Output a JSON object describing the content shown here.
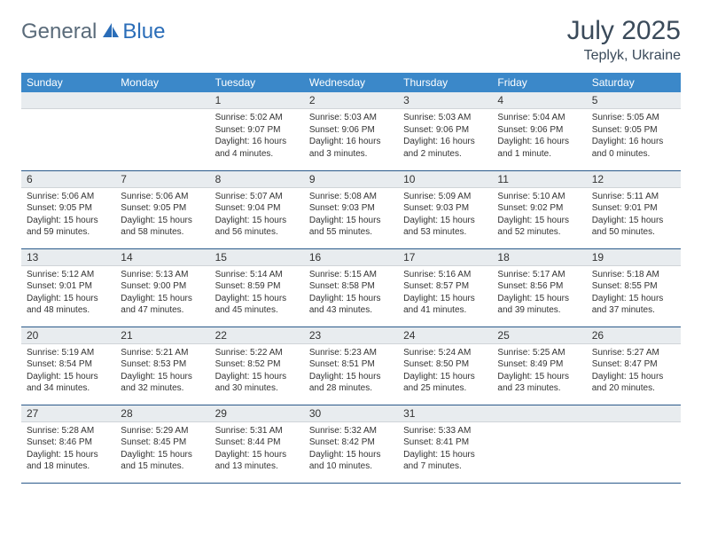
{
  "logo": {
    "part1": "General",
    "part2": "Blue"
  },
  "title": "July 2025",
  "location": "Teplyk, Ukraine",
  "colors": {
    "header_bg": "#3b88c9",
    "header_text": "#ffffff",
    "daynum_bg": "#e8ecef",
    "border": "#2a5a8a",
    "logo_gray": "#5a6b7a",
    "logo_blue": "#2a6db8",
    "title_color": "#3a4a5a"
  },
  "dayNames": [
    "Sunday",
    "Monday",
    "Tuesday",
    "Wednesday",
    "Thursday",
    "Friday",
    "Saturday"
  ],
  "weeks": [
    [
      null,
      null,
      {
        "n": "1",
        "sr": "5:02 AM",
        "ss": "9:07 PM",
        "dl": "16 hours and 4 minutes."
      },
      {
        "n": "2",
        "sr": "5:03 AM",
        "ss": "9:06 PM",
        "dl": "16 hours and 3 minutes."
      },
      {
        "n": "3",
        "sr": "5:03 AM",
        "ss": "9:06 PM",
        "dl": "16 hours and 2 minutes."
      },
      {
        "n": "4",
        "sr": "5:04 AM",
        "ss": "9:06 PM",
        "dl": "16 hours and 1 minute."
      },
      {
        "n": "5",
        "sr": "5:05 AM",
        "ss": "9:05 PM",
        "dl": "16 hours and 0 minutes."
      }
    ],
    [
      {
        "n": "6",
        "sr": "5:06 AM",
        "ss": "9:05 PM",
        "dl": "15 hours and 59 minutes."
      },
      {
        "n": "7",
        "sr": "5:06 AM",
        "ss": "9:05 PM",
        "dl": "15 hours and 58 minutes."
      },
      {
        "n": "8",
        "sr": "5:07 AM",
        "ss": "9:04 PM",
        "dl": "15 hours and 56 minutes."
      },
      {
        "n": "9",
        "sr": "5:08 AM",
        "ss": "9:03 PM",
        "dl": "15 hours and 55 minutes."
      },
      {
        "n": "10",
        "sr": "5:09 AM",
        "ss": "9:03 PM",
        "dl": "15 hours and 53 minutes."
      },
      {
        "n": "11",
        "sr": "5:10 AM",
        "ss": "9:02 PM",
        "dl": "15 hours and 52 minutes."
      },
      {
        "n": "12",
        "sr": "5:11 AM",
        "ss": "9:01 PM",
        "dl": "15 hours and 50 minutes."
      }
    ],
    [
      {
        "n": "13",
        "sr": "5:12 AM",
        "ss": "9:01 PM",
        "dl": "15 hours and 48 minutes."
      },
      {
        "n": "14",
        "sr": "5:13 AM",
        "ss": "9:00 PM",
        "dl": "15 hours and 47 minutes."
      },
      {
        "n": "15",
        "sr": "5:14 AM",
        "ss": "8:59 PM",
        "dl": "15 hours and 45 minutes."
      },
      {
        "n": "16",
        "sr": "5:15 AM",
        "ss": "8:58 PM",
        "dl": "15 hours and 43 minutes."
      },
      {
        "n": "17",
        "sr": "5:16 AM",
        "ss": "8:57 PM",
        "dl": "15 hours and 41 minutes."
      },
      {
        "n": "18",
        "sr": "5:17 AM",
        "ss": "8:56 PM",
        "dl": "15 hours and 39 minutes."
      },
      {
        "n": "19",
        "sr": "5:18 AM",
        "ss": "8:55 PM",
        "dl": "15 hours and 37 minutes."
      }
    ],
    [
      {
        "n": "20",
        "sr": "5:19 AM",
        "ss": "8:54 PM",
        "dl": "15 hours and 34 minutes."
      },
      {
        "n": "21",
        "sr": "5:21 AM",
        "ss": "8:53 PM",
        "dl": "15 hours and 32 minutes."
      },
      {
        "n": "22",
        "sr": "5:22 AM",
        "ss": "8:52 PM",
        "dl": "15 hours and 30 minutes."
      },
      {
        "n": "23",
        "sr": "5:23 AM",
        "ss": "8:51 PM",
        "dl": "15 hours and 28 minutes."
      },
      {
        "n": "24",
        "sr": "5:24 AM",
        "ss": "8:50 PM",
        "dl": "15 hours and 25 minutes."
      },
      {
        "n": "25",
        "sr": "5:25 AM",
        "ss": "8:49 PM",
        "dl": "15 hours and 23 minutes."
      },
      {
        "n": "26",
        "sr": "5:27 AM",
        "ss": "8:47 PM",
        "dl": "15 hours and 20 minutes."
      }
    ],
    [
      {
        "n": "27",
        "sr": "5:28 AM",
        "ss": "8:46 PM",
        "dl": "15 hours and 18 minutes."
      },
      {
        "n": "28",
        "sr": "5:29 AM",
        "ss": "8:45 PM",
        "dl": "15 hours and 15 minutes."
      },
      {
        "n": "29",
        "sr": "5:31 AM",
        "ss": "8:44 PM",
        "dl": "15 hours and 13 minutes."
      },
      {
        "n": "30",
        "sr": "5:32 AM",
        "ss": "8:42 PM",
        "dl": "15 hours and 10 minutes."
      },
      {
        "n": "31",
        "sr": "5:33 AM",
        "ss": "8:41 PM",
        "dl": "15 hours and 7 minutes."
      },
      null,
      null
    ]
  ],
  "labels": {
    "sunrise": "Sunrise:",
    "sunset": "Sunset:",
    "daylight": "Daylight:"
  }
}
